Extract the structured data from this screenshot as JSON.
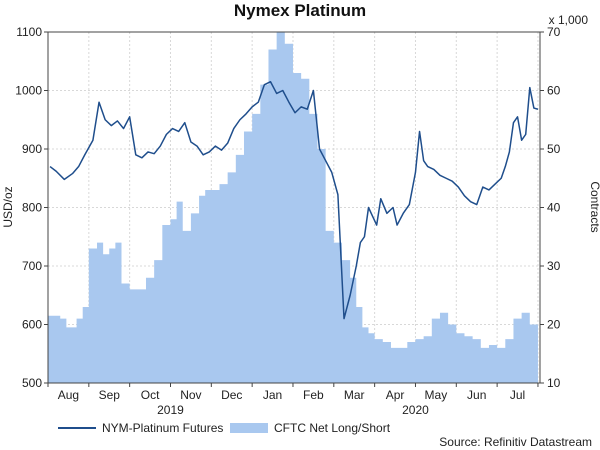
{
  "chart_data": {
    "type": "line",
    "title": "Nymex Platinum",
    "ylabel_left": "USD/oz",
    "ylabel_right": "Contracts",
    "right_multiplier": "x 1,000",
    "source": "Source: Refinitiv Datastream",
    "x_tick_labels": [
      "Aug",
      "Sep",
      "Oct",
      "Nov",
      "Dec",
      "Jan",
      "Feb",
      "Mar",
      "Apr",
      "May",
      "Jun",
      "Jul"
    ],
    "year_labels": [
      {
        "label": "2019",
        "month_index": 3
      },
      {
        "label": "2020",
        "month_index": 9
      }
    ],
    "x_range_months": [
      0,
      12.05
    ],
    "y_left": {
      "min": 500,
      "max": 1100,
      "ticks": [
        500,
        600,
        700,
        800,
        900,
        1000,
        1100
      ]
    },
    "y_right": {
      "min": 10,
      "max": 70,
      "ticks": [
        10,
        20,
        30,
        40,
        50,
        60,
        70
      ]
    },
    "grid": true,
    "legend_placement": "bottom",
    "series": [
      {
        "name": "NYM-Platinum Futures",
        "axis": "left",
        "style": "line",
        "color": "#1f4e8c",
        "x": [
          0.05,
          0.2,
          0.4,
          0.6,
          0.75,
          0.9,
          1.1,
          1.25,
          1.4,
          1.55,
          1.7,
          1.85,
          2.0,
          2.15,
          2.3,
          2.45,
          2.6,
          2.75,
          2.9,
          3.05,
          3.2,
          3.35,
          3.5,
          3.65,
          3.8,
          3.95,
          4.1,
          4.25,
          4.4,
          4.55,
          4.7,
          4.85,
          5.0,
          5.15,
          5.3,
          5.45,
          5.6,
          5.75,
          5.9,
          6.05,
          6.2,
          6.35,
          6.5,
          6.65,
          6.8,
          6.95,
          7.1,
          7.25,
          7.4,
          7.55,
          7.65,
          7.75,
          7.85,
          7.95,
          8.05,
          8.15,
          8.3,
          8.45,
          8.55,
          8.7,
          8.85,
          9.0,
          9.1,
          9.2,
          9.3,
          9.45,
          9.6,
          9.75,
          9.9,
          10.05,
          10.2,
          10.35,
          10.5,
          10.65,
          10.8,
          10.95,
          11.1,
          11.2,
          11.3,
          11.4,
          11.5,
          11.6,
          11.7,
          11.8,
          11.9,
          12.0
        ],
        "y": [
          870,
          862,
          848,
          858,
          870,
          890,
          915,
          980,
          950,
          940,
          948,
          935,
          955,
          890,
          885,
          895,
          892,
          905,
          925,
          935,
          930,
          945,
          912,
          905,
          890,
          895,
          905,
          898,
          910,
          935,
          950,
          960,
          972,
          980,
          1010,
          1015,
          995,
          1000,
          980,
          962,
          972,
          968,
          1000,
          900,
          880,
          860,
          822,
          610,
          650,
          700,
          740,
          750,
          800,
          785,
          770,
          815,
          790,
          800,
          770,
          790,
          805,
          860,
          930,
          880,
          870,
          865,
          855,
          850,
          845,
          835,
          820,
          810,
          805,
          835,
          830,
          840,
          850,
          870,
          895,
          945,
          955,
          915,
          925,
          1005,
          970,
          968
        ]
      },
      {
        "name": "CFTC Net Long/Short",
        "axis": "right",
        "style": "area",
        "color": "#a9c8ef",
        "x": [
          0.0,
          0.3,
          0.45,
          0.7,
          0.85,
          1.0,
          1.2,
          1.35,
          1.5,
          1.65,
          1.8,
          2.0,
          2.2,
          2.4,
          2.6,
          2.8,
          3.0,
          3.15,
          3.3,
          3.5,
          3.7,
          3.85,
          4.0,
          4.2,
          4.4,
          4.6,
          4.8,
          5.0,
          5.2,
          5.4,
          5.6,
          5.8,
          6.0,
          6.2,
          6.4,
          6.6,
          6.8,
          7.0,
          7.2,
          7.4,
          7.55,
          7.7,
          7.85,
          8.0,
          8.2,
          8.4,
          8.6,
          8.8,
          9.0,
          9.2,
          9.4,
          9.6,
          9.8,
          10.0,
          10.2,
          10.4,
          10.6,
          10.8,
          11.0,
          11.2,
          11.4,
          11.6,
          11.8,
          12.0
        ],
        "y": [
          21.5,
          21,
          19.5,
          21,
          23,
          33,
          34,
          32,
          33,
          34,
          27,
          26,
          26,
          28,
          31,
          37,
          38,
          41,
          36,
          39,
          42,
          43,
          43,
          44,
          46,
          49,
          53,
          56,
          61,
          67,
          70,
          68,
          63,
          62,
          56,
          50,
          36,
          34,
          31,
          28,
          23,
          19.5,
          18.5,
          17.5,
          17,
          16,
          16,
          17,
          17.5,
          18,
          21,
          22,
          20,
          18.5,
          18,
          17.5,
          16,
          16.5,
          16,
          17.5,
          21,
          22,
          20,
          19
        ]
      }
    ]
  }
}
